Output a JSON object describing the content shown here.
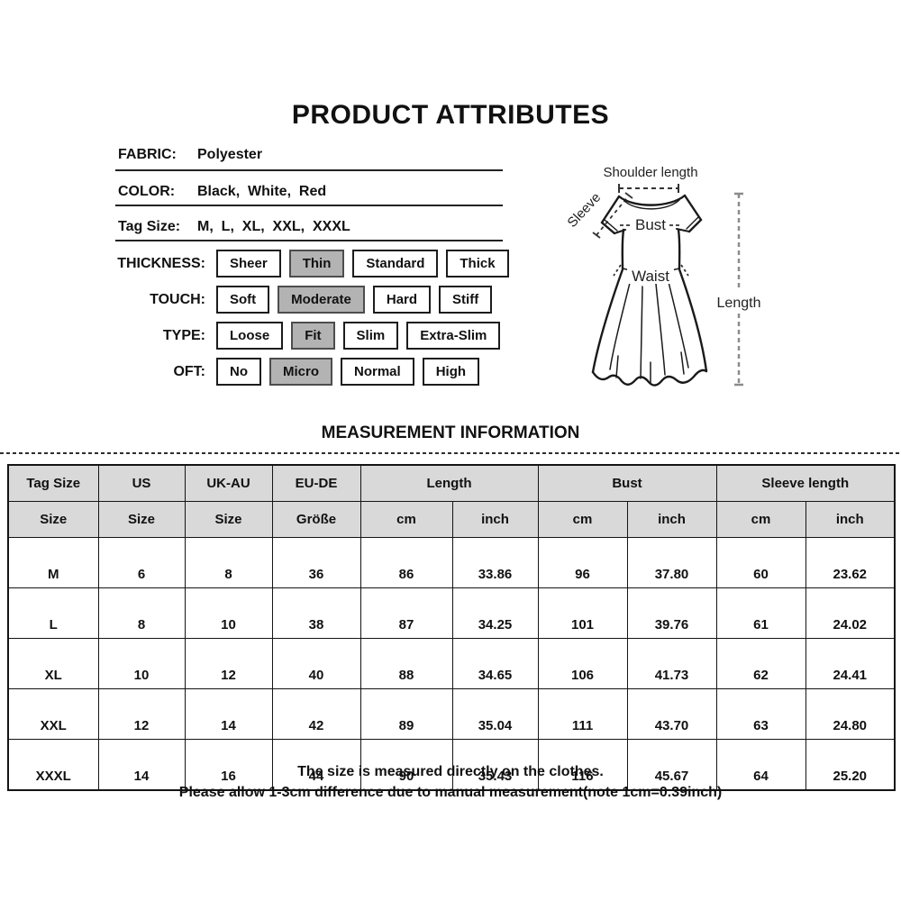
{
  "title": "PRODUCT ATTRIBUTES",
  "attributes": {
    "specs": [
      {
        "label": "FABRIC:",
        "value": "Polyester"
      },
      {
        "label": "COLOR:",
        "value": "Black,  White,  Red"
      },
      {
        "label": "Tag Size:",
        "value": "M,  L,  XL,  XXL,  XXXL"
      }
    ],
    "options": [
      {
        "label": "THICKNESS:",
        "choices": [
          "Sheer",
          "Thin",
          "Standard",
          "Thick"
        ],
        "selected": "Thin"
      },
      {
        "label": "TOUCH:",
        "choices": [
          "Soft",
          "Moderate",
          "Hard",
          "Stiff"
        ],
        "selected": "Moderate"
      },
      {
        "label": "TYPE:",
        "choices": [
          "Loose",
          "Fit",
          "Slim",
          "Extra-Slim"
        ],
        "selected": "Fit"
      },
      {
        "label": "OFT:",
        "choices": [
          "No",
          "Micro",
          "Normal",
          "High"
        ],
        "selected": "Micro"
      }
    ]
  },
  "diagram": {
    "labels": {
      "shoulder": "Shoulder length",
      "sleeve": "Sleeve",
      "bust": "Bust",
      "waist": "Waist",
      "length": "Length"
    }
  },
  "measurement": {
    "title": "MEASUREMENT INFORMATION",
    "table": {
      "groups": [
        {
          "label": "Tag Size",
          "subs": [
            "Size"
          ]
        },
        {
          "label": "US",
          "subs": [
            "Size"
          ]
        },
        {
          "label": "UK-AU",
          "subs": [
            "Size"
          ]
        },
        {
          "label": "EU-DE",
          "subs": [
            "Größe"
          ]
        },
        {
          "label": "Length",
          "subs": [
            "cm",
            "inch"
          ]
        },
        {
          "label": "Bust",
          "subs": [
            "cm",
            "inch"
          ]
        },
        {
          "label": "Sleeve length",
          "subs": [
            "cm",
            "inch"
          ]
        }
      ],
      "rows": [
        [
          "M",
          "6",
          "8",
          "36",
          "86",
          "33.86",
          "96",
          "37.80",
          "60",
          "23.62"
        ],
        [
          "L",
          "8",
          "10",
          "38",
          "87",
          "34.25",
          "101",
          "39.76",
          "61",
          "24.02"
        ],
        [
          "XL",
          "10",
          "12",
          "40",
          "88",
          "34.65",
          "106",
          "41.73",
          "62",
          "24.41"
        ],
        [
          "XXL",
          "12",
          "14",
          "42",
          "89",
          "35.04",
          "111",
          "43.70",
          "63",
          "24.80"
        ],
        [
          "XXXL",
          "14",
          "16",
          "44",
          "90",
          "35.43",
          "116",
          "45.67",
          "64",
          "25.20"
        ]
      ]
    },
    "notes": [
      "The size is measured directly on the clothes.",
      "Please allow 1-3cm difference due to manual measurement(note 1cm=0.39inch)"
    ]
  },
  "colors": {
    "selected_bg": "#b3b3b3",
    "selected_border": "#4d4d4d",
    "header_bg": "#d9d9d9",
    "table_border": "#141414",
    "dash_gray": "#8c8c8c",
    "text": "#111111"
  }
}
